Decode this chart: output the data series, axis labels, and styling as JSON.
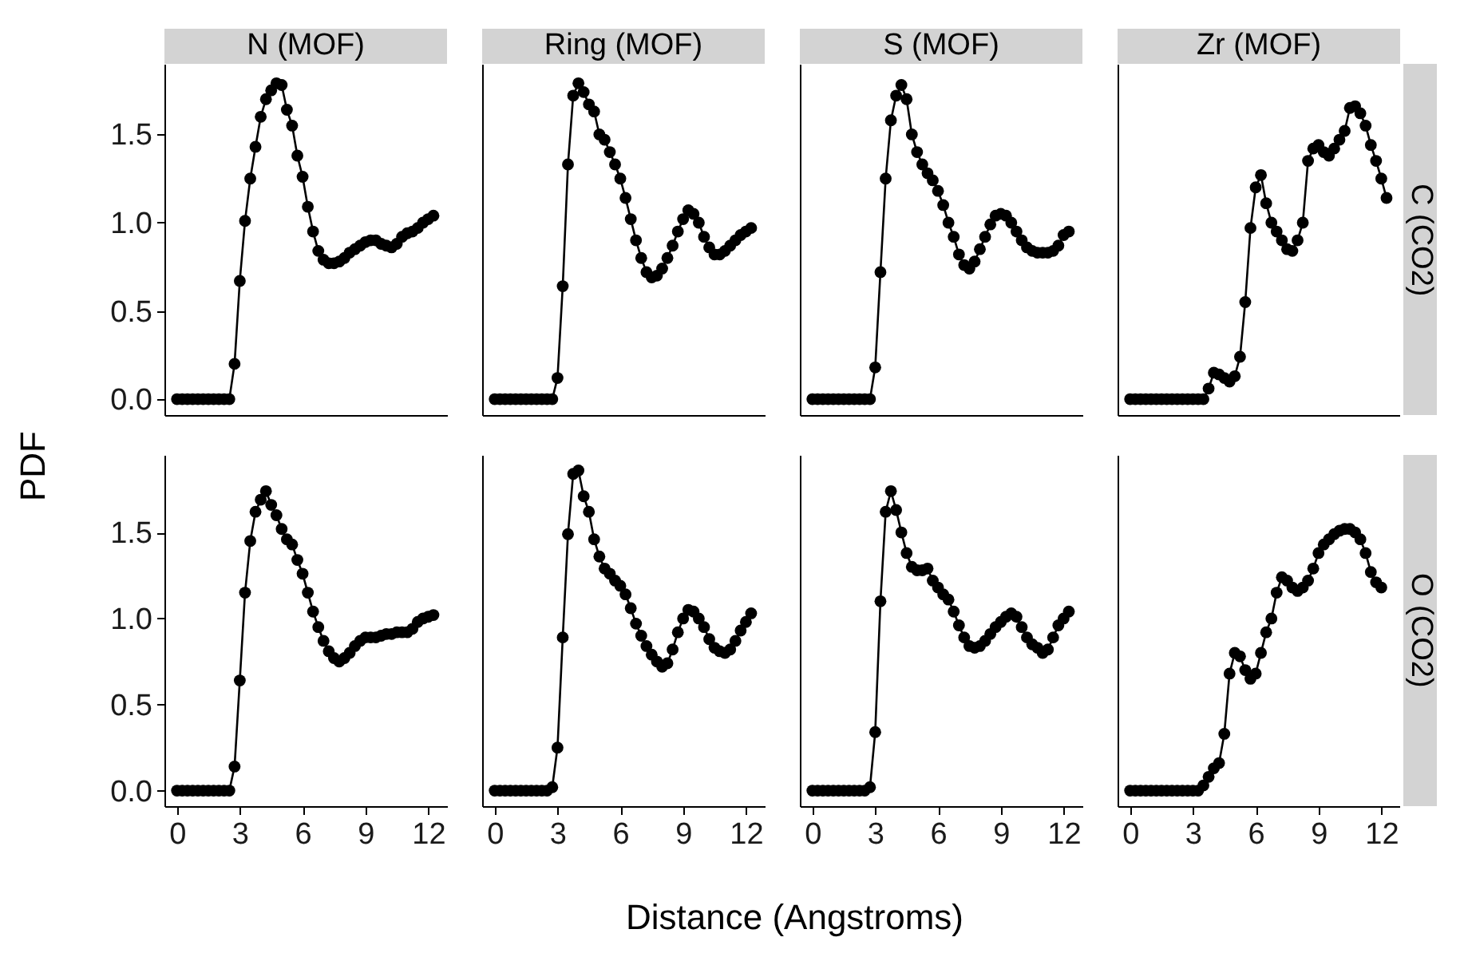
{
  "chart_data": [
    {
      "type": "line",
      "title": "N (MOF)",
      "ylabel": "PDF",
      "marker": "circle",
      "line_style": "solid",
      "tick_labels": "y",
      "xlim": [
        -0.6,
        12.9
      ],
      "ylim": [
        -0.09,
        1.9
      ],
      "yticks": [
        {
          "value": 0,
          "label": "0.0"
        },
        {
          "value": 0.5,
          "label": "0.5"
        },
        {
          "value": 1,
          "label": "1.0"
        },
        {
          "value": 1.5,
          "label": "1.5"
        }
      ],
      "x": [
        0,
        0.25,
        0.5,
        0.75,
        1,
        1.25,
        1.5,
        1.75,
        2,
        2.25,
        2.5,
        2.75,
        3,
        3.25,
        3.5,
        3.75,
        4,
        4.25,
        4.5,
        4.75,
        5,
        5.25,
        5.5,
        5.75,
        6,
        6.25,
        6.5,
        6.75,
        7,
        7.25,
        7.5,
        7.75,
        8,
        8.25,
        8.5,
        8.75,
        9,
        9.25,
        9.5,
        9.75,
        10,
        10.25,
        10.5,
        10.75,
        11,
        11.25,
        11.5,
        11.75,
        12,
        12.25
      ],
      "series": [
        {
          "color": "#000000",
          "values": [
            0,
            0,
            0,
            0,
            0,
            0,
            0,
            0,
            0,
            0,
            0,
            0.2,
            0.67,
            1.01,
            1.25,
            1.43,
            1.6,
            1.7,
            1.75,
            1.79,
            1.78,
            1.64,
            1.55,
            1.38,
            1.26,
            1.09,
            0.95,
            0.84,
            0.79,
            0.77,
            0.77,
            0.78,
            0.8,
            0.83,
            0.85,
            0.87,
            0.89,
            0.9,
            0.9,
            0.88,
            0.87,
            0.86,
            0.88,
            0.92,
            0.94,
            0.95,
            0.97,
            1.0,
            1.02,
            1.04
          ]
        }
      ]
    },
    {
      "type": "line",
      "title": "Ring (MOF)",
      "marker": "circle",
      "line_style": "solid",
      "tick_labels": false,
      "xlim": [
        -0.6,
        12.9
      ],
      "ylim": [
        -0.09,
        1.9
      ],
      "x": [
        0,
        0.25,
        0.5,
        0.75,
        1,
        1.25,
        1.5,
        1.75,
        2,
        2.25,
        2.5,
        2.75,
        3,
        3.25,
        3.5,
        3.75,
        4,
        4.25,
        4.5,
        4.75,
        5,
        5.25,
        5.5,
        5.75,
        6,
        6.25,
        6.5,
        6.75,
        7,
        7.25,
        7.5,
        7.75,
        8,
        8.25,
        8.5,
        8.75,
        9,
        9.25,
        9.5,
        9.75,
        10,
        10.25,
        10.5,
        10.75,
        11,
        11.25,
        11.5,
        11.75,
        12,
        12.25
      ],
      "series": [
        {
          "color": "#000000",
          "values": [
            0,
            0,
            0,
            0,
            0,
            0,
            0,
            0,
            0,
            0,
            0,
            0,
            0.12,
            0.64,
            1.33,
            1.72,
            1.79,
            1.74,
            1.67,
            1.63,
            1.5,
            1.47,
            1.4,
            1.33,
            1.25,
            1.14,
            1.02,
            0.9,
            0.8,
            0.72,
            0.69,
            0.7,
            0.74,
            0.8,
            0.87,
            0.95,
            1.02,
            1.07,
            1.05,
            1.0,
            0.92,
            0.86,
            0.82,
            0.82,
            0.84,
            0.87,
            0.9,
            0.93,
            0.95,
            0.97
          ]
        }
      ]
    },
    {
      "type": "line",
      "title": "S (MOF)",
      "marker": "circle",
      "line_style": "solid",
      "tick_labels": false,
      "xlim": [
        -0.6,
        12.9
      ],
      "ylim": [
        -0.09,
        1.9
      ],
      "x": [
        0,
        0.25,
        0.5,
        0.75,
        1,
        1.25,
        1.5,
        1.75,
        2,
        2.25,
        2.5,
        2.75,
        3,
        3.25,
        3.5,
        3.75,
        4,
        4.25,
        4.5,
        4.75,
        5,
        5.25,
        5.5,
        5.75,
        6,
        6.25,
        6.5,
        6.75,
        7,
        7.25,
        7.5,
        7.75,
        8,
        8.25,
        8.5,
        8.75,
        9,
        9.25,
        9.5,
        9.75,
        10,
        10.25,
        10.5,
        10.75,
        11,
        11.25,
        11.5,
        11.75,
        12,
        12.25
      ],
      "series": [
        {
          "color": "#000000",
          "values": [
            0,
            0,
            0,
            0,
            0,
            0,
            0,
            0,
            0,
            0,
            0,
            0,
            0.18,
            0.72,
            1.25,
            1.58,
            1.72,
            1.78,
            1.7,
            1.5,
            1.4,
            1.33,
            1.28,
            1.24,
            1.18,
            1.1,
            1.0,
            0.92,
            0.82,
            0.76,
            0.74,
            0.78,
            0.85,
            0.92,
            0.99,
            1.04,
            1.05,
            1.04,
            1.0,
            0.95,
            0.9,
            0.86,
            0.84,
            0.83,
            0.83,
            0.83,
            0.84,
            0.87,
            0.93,
            0.95
          ]
        }
      ]
    },
    {
      "type": "line",
      "title": "Zr (MOF)",
      "y2label": "C (CO2)",
      "marker": "circle",
      "line_style": "solid",
      "tick_labels": false,
      "xlim": [
        -0.6,
        12.9
      ],
      "ylim": [
        -0.09,
        1.9
      ],
      "x": [
        0,
        0.25,
        0.5,
        0.75,
        1,
        1.25,
        1.5,
        1.75,
        2,
        2.25,
        2.5,
        2.75,
        3,
        3.25,
        3.5,
        3.75,
        4,
        4.25,
        4.5,
        4.75,
        5,
        5.25,
        5.5,
        5.75,
        6,
        6.25,
        6.5,
        6.75,
        7,
        7.25,
        7.5,
        7.75,
        8,
        8.25,
        8.5,
        8.75,
        9,
        9.25,
        9.5,
        9.75,
        10,
        10.25,
        10.5,
        10.75,
        11,
        11.25,
        11.5,
        11.75,
        12,
        12.25
      ],
      "series": [
        {
          "color": "#000000",
          "values": [
            0,
            0,
            0,
            0,
            0,
            0,
            0,
            0,
            0,
            0,
            0,
            0,
            0,
            0,
            0,
            0.06,
            0.15,
            0.14,
            0.12,
            0.1,
            0.13,
            0.24,
            0.55,
            0.97,
            1.2,
            1.27,
            1.11,
            1.0,
            0.95,
            0.9,
            0.85,
            0.84,
            0.9,
            1.0,
            1.35,
            1.42,
            1.44,
            1.4,
            1.38,
            1.42,
            1.47,
            1.52,
            1.65,
            1.66,
            1.62,
            1.55,
            1.44,
            1.35,
            1.25,
            1.14
          ]
        }
      ]
    },
    {
      "type": "line",
      "xlabel": "Distance (Angstroms)",
      "marker": "circle",
      "line_style": "solid",
      "xlim": [
        -0.6,
        12.9
      ],
      "ylim": [
        -0.09,
        1.95
      ],
      "xticks": [
        0,
        3,
        6,
        9,
        12
      ],
      "yticks": [
        {
          "value": 0,
          "label": "0.0"
        },
        {
          "value": 0.5,
          "label": "0.5"
        },
        {
          "value": 1,
          "label": "1.0"
        },
        {
          "value": 1.5,
          "label": "1.5"
        }
      ],
      "x": [
        0,
        0.25,
        0.5,
        0.75,
        1,
        1.25,
        1.5,
        1.75,
        2,
        2.25,
        2.5,
        2.75,
        3,
        3.25,
        3.5,
        3.75,
        4,
        4.25,
        4.5,
        4.75,
        5,
        5.25,
        5.5,
        5.75,
        6,
        6.25,
        6.5,
        6.75,
        7,
        7.25,
        7.5,
        7.75,
        8,
        8.25,
        8.5,
        8.75,
        9,
        9.25,
        9.5,
        9.75,
        10,
        10.25,
        10.5,
        10.75,
        11,
        11.25,
        11.5,
        11.75,
        12,
        12.25
      ],
      "series": [
        {
          "color": "#000000",
          "values": [
            0,
            0,
            0,
            0,
            0,
            0,
            0,
            0,
            0,
            0,
            0,
            0.14,
            0.64,
            1.15,
            1.45,
            1.62,
            1.69,
            1.74,
            1.66,
            1.6,
            1.52,
            1.46,
            1.43,
            1.34,
            1.26,
            1.15,
            1.04,
            0.95,
            0.87,
            0.81,
            0.77,
            0.75,
            0.77,
            0.8,
            0.84,
            0.87,
            0.89,
            0.89,
            0.89,
            0.9,
            0.91,
            0.91,
            0.92,
            0.92,
            0.92,
            0.94,
            0.98,
            1.0,
            1.01,
            1.02
          ]
        }
      ]
    },
    {
      "type": "line",
      "marker": "circle",
      "line_style": "solid",
      "tick_labels": "x",
      "xlim": [
        -0.6,
        12.9
      ],
      "ylim": [
        -0.09,
        1.95
      ],
      "xticks": [
        0,
        3,
        6,
        9,
        12
      ],
      "x": [
        0,
        0.25,
        0.5,
        0.75,
        1,
        1.25,
        1.5,
        1.75,
        2,
        2.25,
        2.5,
        2.75,
        3,
        3.25,
        3.5,
        3.75,
        4,
        4.25,
        4.5,
        4.75,
        5,
        5.25,
        5.5,
        5.75,
        6,
        6.25,
        6.5,
        6.75,
        7,
        7.25,
        7.5,
        7.75,
        8,
        8.25,
        8.5,
        8.75,
        9,
        9.25,
        9.5,
        9.75,
        10,
        10.25,
        10.5,
        10.75,
        11,
        11.25,
        11.5,
        11.75,
        12,
        12.25
      ],
      "series": [
        {
          "color": "#000000",
          "values": [
            0,
            0,
            0,
            0,
            0,
            0,
            0,
            0,
            0,
            0,
            0,
            0.02,
            0.25,
            0.89,
            1.49,
            1.84,
            1.86,
            1.71,
            1.62,
            1.46,
            1.36,
            1.29,
            1.26,
            1.22,
            1.19,
            1.14,
            1.06,
            0.97,
            0.9,
            0.84,
            0.79,
            0.75,
            0.72,
            0.74,
            0.82,
            0.92,
            1.0,
            1.05,
            1.04,
            1.0,
            0.95,
            0.88,
            0.83,
            0.81,
            0.8,
            0.82,
            0.87,
            0.93,
            0.98,
            1.03
          ]
        }
      ]
    },
    {
      "type": "line",
      "marker": "circle",
      "line_style": "solid",
      "tick_labels": "x",
      "xlim": [
        -0.6,
        12.9
      ],
      "ylim": [
        -0.09,
        1.95
      ],
      "xticks": [
        0,
        3,
        6,
        9,
        12
      ],
      "x": [
        0,
        0.25,
        0.5,
        0.75,
        1,
        1.25,
        1.5,
        1.75,
        2,
        2.25,
        2.5,
        2.75,
        3,
        3.25,
        3.5,
        3.75,
        4,
        4.25,
        4.5,
        4.75,
        5,
        5.25,
        5.5,
        5.75,
        6,
        6.25,
        6.5,
        6.75,
        7,
        7.25,
        7.5,
        7.75,
        8,
        8.25,
        8.5,
        8.75,
        9,
        9.25,
        9.5,
        9.75,
        10,
        10.25,
        10.5,
        10.75,
        11,
        11.25,
        11.5,
        11.75,
        12,
        12.25
      ],
      "series": [
        {
          "color": "#000000",
          "values": [
            0,
            0,
            0,
            0,
            0,
            0,
            0,
            0,
            0,
            0,
            0,
            0.02,
            0.34,
            1.1,
            1.62,
            1.74,
            1.63,
            1.5,
            1.38,
            1.3,
            1.28,
            1.28,
            1.29,
            1.22,
            1.18,
            1.14,
            1.11,
            1.04,
            0.96,
            0.89,
            0.84,
            0.83,
            0.84,
            0.87,
            0.91,
            0.95,
            0.98,
            1.01,
            1.03,
            1.01,
            0.95,
            0.89,
            0.85,
            0.83,
            0.8,
            0.82,
            0.89,
            0.96,
            1.0,
            1.04
          ]
        }
      ]
    },
    {
      "type": "line",
      "y2label": "O (CO2)",
      "marker": "circle",
      "line_style": "solid",
      "tick_labels": "x",
      "xlim": [
        -0.6,
        12.9
      ],
      "ylim": [
        -0.09,
        1.95
      ],
      "xticks": [
        0,
        3,
        6,
        9,
        12
      ],
      "x": [
        0,
        0.25,
        0.5,
        0.75,
        1,
        1.25,
        1.5,
        1.75,
        2,
        2.25,
        2.5,
        2.75,
        3,
        3.25,
        3.5,
        3.75,
        4,
        4.25,
        4.5,
        4.75,
        5,
        5.25,
        5.5,
        5.75,
        6,
        6.25,
        6.5,
        6.75,
        7,
        7.25,
        7.5,
        7.75,
        8,
        8.25,
        8.5,
        8.75,
        9,
        9.25,
        9.5,
        9.75,
        10,
        10.25,
        10.5,
        10.75,
        11,
        11.25,
        11.5,
        11.75,
        12
      ],
      "series": [
        {
          "color": "#000000",
          "values": [
            0,
            0,
            0,
            0,
            0,
            0,
            0,
            0,
            0,
            0,
            0,
            0,
            0,
            0,
            0.03,
            0.08,
            0.13,
            0.16,
            0.33,
            0.68,
            0.8,
            0.78,
            0.7,
            0.65,
            0.68,
            0.8,
            0.92,
            1.0,
            1.15,
            1.24,
            1.22,
            1.18,
            1.16,
            1.18,
            1.22,
            1.29,
            1.38,
            1.43,
            1.46,
            1.49,
            1.51,
            1.52,
            1.52,
            1.5,
            1.46,
            1.38,
            1.27,
            1.21,
            1.18
          ]
        }
      ]
    }
  ]
}
